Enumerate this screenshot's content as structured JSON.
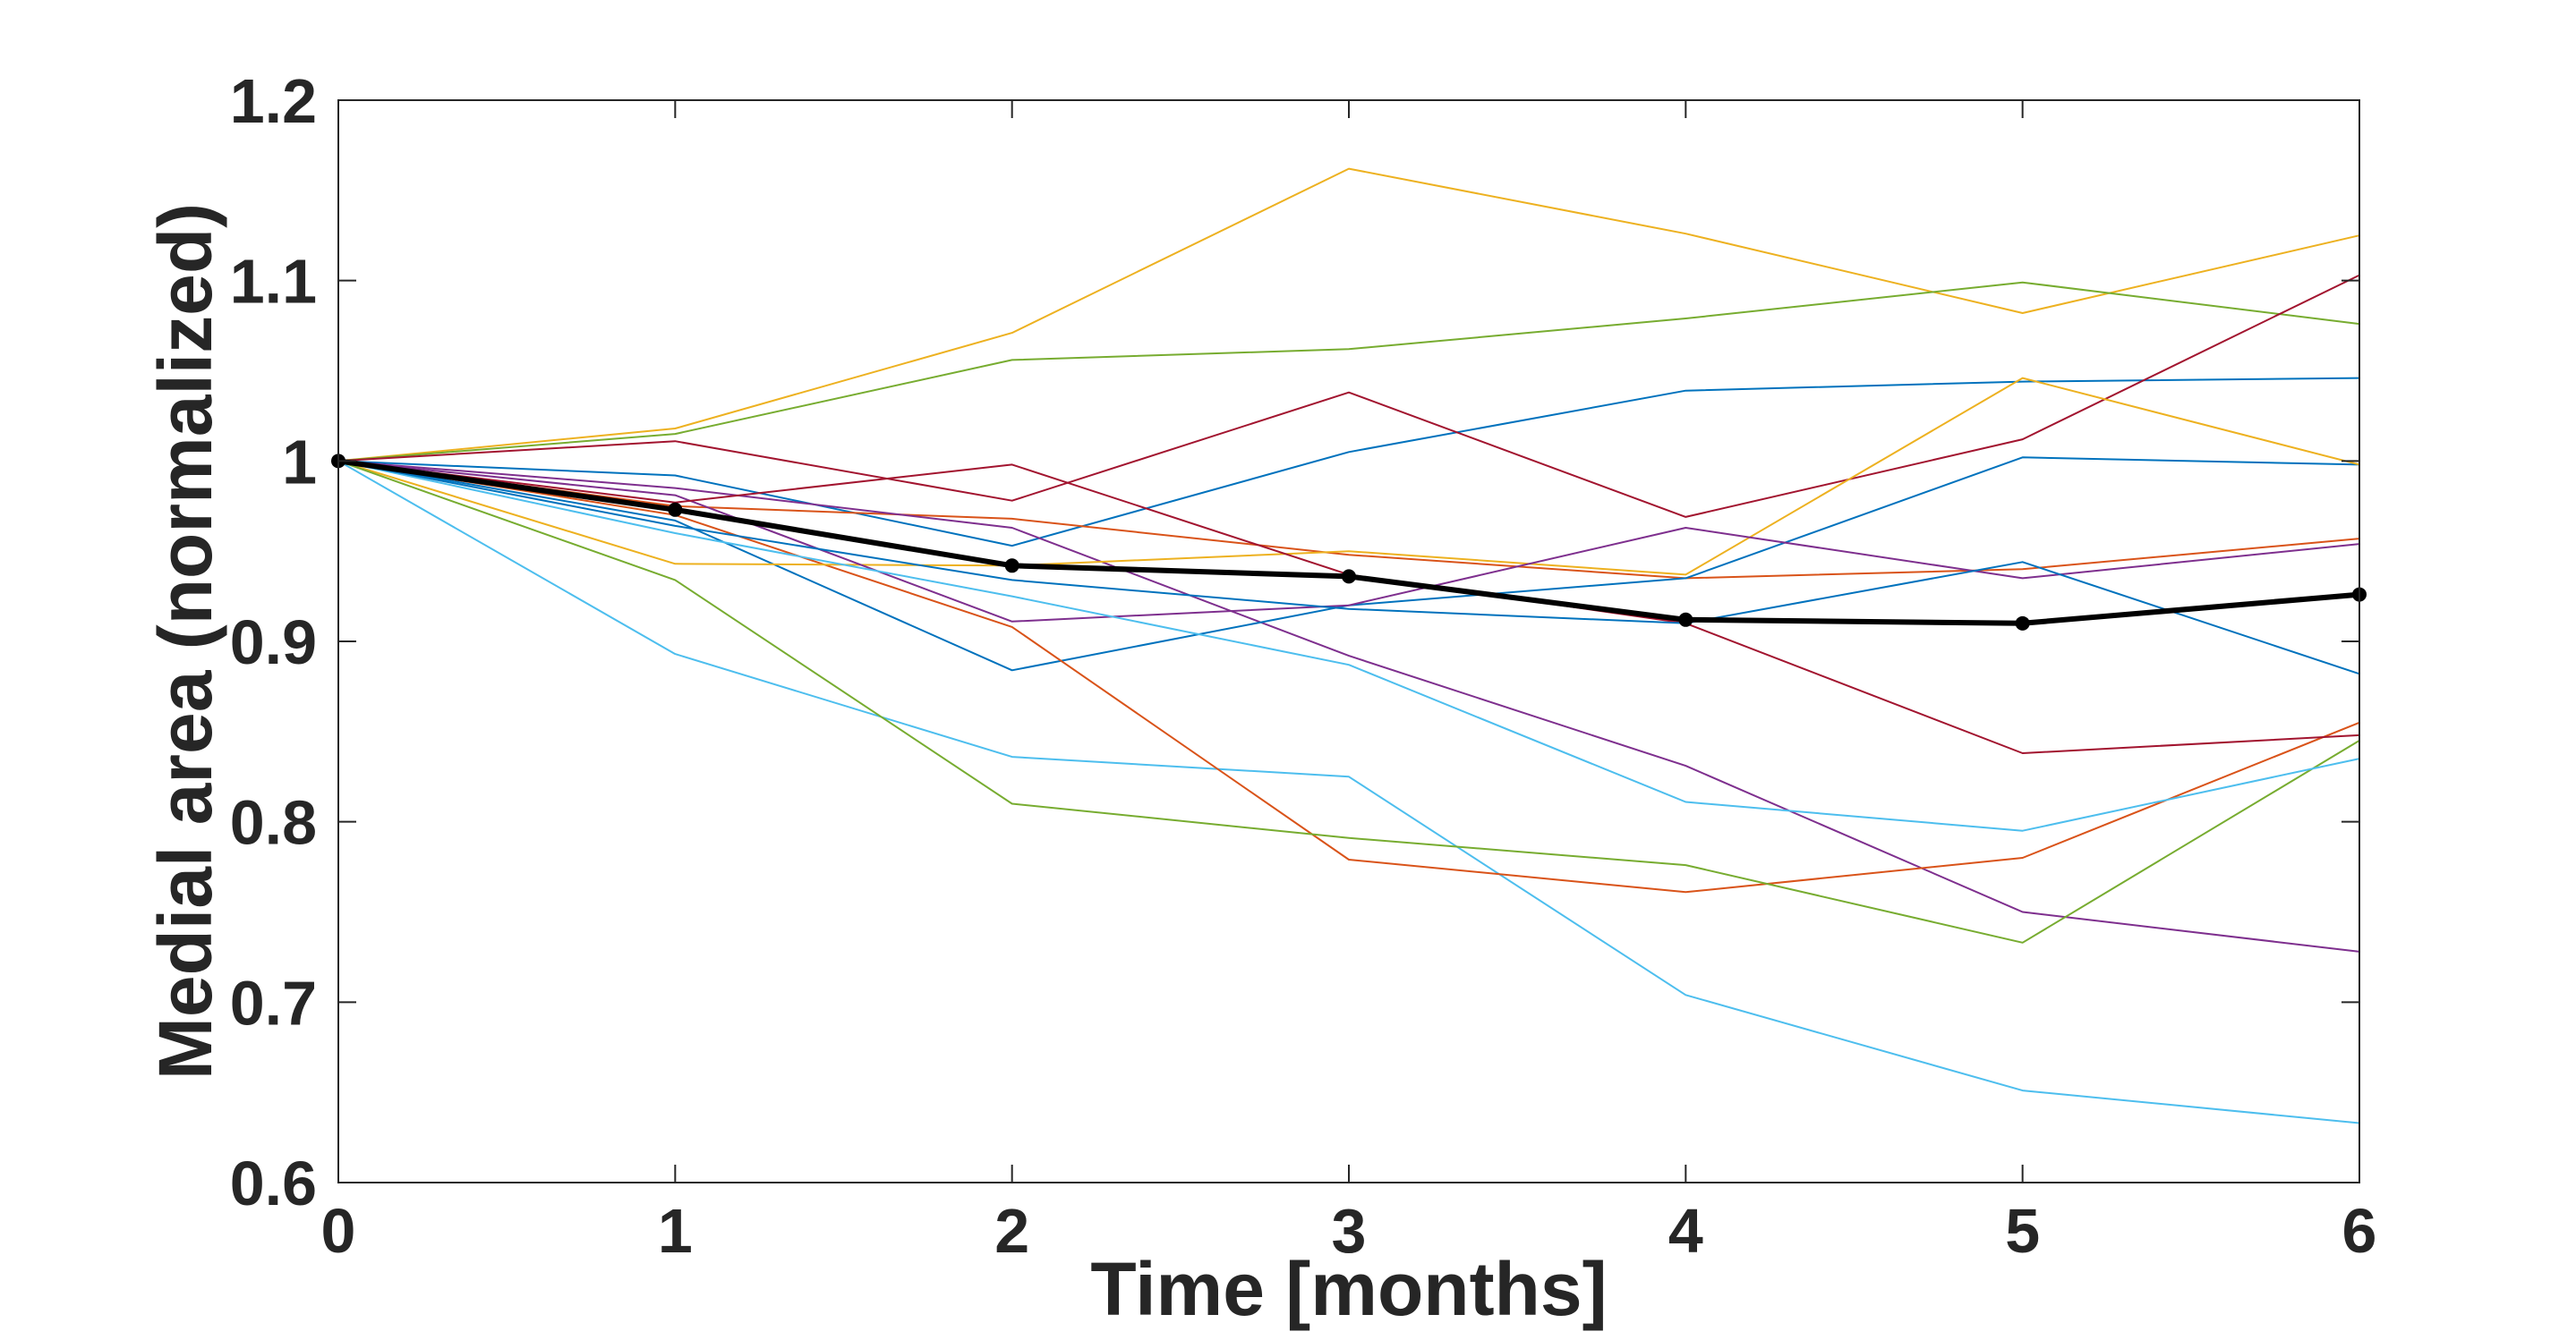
{
  "chart_data": {
    "type": "line",
    "xlabel": "Time [months]",
    "ylabel": "Medial area (normalized)",
    "xlim": [
      0,
      6
    ],
    "ylim": [
      0.6,
      1.2
    ],
    "xticks": [
      0,
      1,
      2,
      3,
      4,
      5,
      6
    ],
    "xtick_labels": [
      "0",
      "1",
      "2",
      "3",
      "4",
      "5",
      "6"
    ],
    "yticks": [
      0.6,
      0.7,
      0.8,
      0.9,
      1.0,
      1.1,
      1.2
    ],
    "ytick_labels": [
      "0.6",
      "0.7",
      "0.8",
      "0.9",
      "1",
      "1.1",
      "1.2"
    ],
    "grid": false,
    "x": [
      0,
      1,
      2,
      3,
      4,
      5,
      6
    ],
    "series": [
      {
        "color": "#0072BD",
        "width": 2,
        "values": [
          1.0,
          0.992,
          0.953,
          1.005,
          1.039,
          1.044,
          1.046
        ]
      },
      {
        "color": "#D95319",
        "width": 2,
        "values": [
          1.0,
          0.975,
          0.968,
          0.948,
          0.935,
          0.94,
          0.957
        ]
      },
      {
        "color": "#EDB120",
        "width": 2,
        "values": [
          1.0,
          1.018,
          1.071,
          1.162,
          1.126,
          1.082,
          1.125
        ]
      },
      {
        "color": "#7E2F8E",
        "width": 2,
        "values": [
          1.0,
          0.985,
          0.963,
          0.892,
          0.831,
          0.75,
          0.728
        ]
      },
      {
        "color": "#77AC30",
        "width": 2,
        "values": [
          1.0,
          1.015,
          1.056,
          1.062,
          1.079,
          1.099,
          1.076
        ]
      },
      {
        "color": "#4DBEEE",
        "width": 2,
        "values": [
          1.0,
          0.893,
          0.836,
          0.825,
          0.704,
          0.651,
          0.633
        ]
      },
      {
        "color": "#A2142F",
        "width": 2,
        "values": [
          1.0,
          1.011,
          0.978,
          1.038,
          0.969,
          1.012,
          1.103
        ]
      },
      {
        "color": "#0072BD",
        "width": 2,
        "values": [
          1.0,
          0.967,
          0.884,
          0.92,
          0.935,
          1.002,
          0.998
        ]
      },
      {
        "color": "#D95319",
        "width": 2,
        "values": [
          1.0,
          0.97,
          0.908,
          0.779,
          0.761,
          0.78,
          0.855
        ]
      },
      {
        "color": "#EDB120",
        "width": 2,
        "values": [
          1.0,
          0.943,
          0.942,
          0.95,
          0.937,
          1.046,
          0.998
        ]
      },
      {
        "color": "#7E2F8E",
        "width": 2,
        "values": [
          1.0,
          0.981,
          0.911,
          0.92,
          0.963,
          0.935,
          0.954
        ]
      },
      {
        "color": "#77AC30",
        "width": 2,
        "values": [
          1.0,
          0.934,
          0.81,
          0.791,
          0.776,
          0.733,
          0.845
        ]
      },
      {
        "color": "#4DBEEE",
        "width": 2,
        "values": [
          1.0,
          0.96,
          0.925,
          0.887,
          0.811,
          0.795,
          0.835
        ]
      },
      {
        "color": "#A2142F",
        "width": 2,
        "values": [
          1.0,
          0.977,
          0.998,
          0.937,
          0.91,
          0.838,
          0.848
        ]
      },
      {
        "color": "#0072BD",
        "width": 2,
        "values": [
          1.0,
          0.964,
          0.934,
          0.918,
          0.91,
          0.944,
          0.882
        ]
      },
      {
        "color": "#000000",
        "width": 6,
        "markers": true,
        "values": [
          1.0,
          0.973,
          0.942,
          0.936,
          0.912,
          0.91,
          0.926
        ]
      }
    ]
  }
}
